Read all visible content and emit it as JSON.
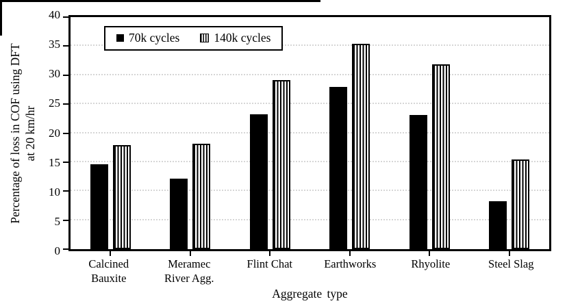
{
  "chart_data": {
    "type": "bar",
    "title": "",
    "categories": [
      "Calcined Bauxite",
      "Meramec River Agg.",
      "Flint Chat",
      "Earthworks",
      "Rhyolite",
      "Steel Slag"
    ],
    "series": [
      {
        "name": "70k cycles",
        "style": "solid",
        "values": [
          14.6,
          12.1,
          23.3,
          28.0,
          23.1,
          8.3
        ]
      },
      {
        "name": "140k cycles",
        "style": "striped",
        "values": [
          17.9,
          18.2,
          29.1,
          35.4,
          31.8,
          15.5
        ]
      }
    ],
    "xlabel": "Aggregate type",
    "ylabel_line1": "Percentage of loss in COF using DFT",
    "ylabel_line2": "at 20 km/hr",
    "ylim": [
      0,
      40
    ],
    "ytick_step": 5,
    "ytick_labels": [
      "0",
      "5",
      "10",
      "15",
      "20",
      "25",
      "30",
      "35",
      "40"
    ],
    "grid": "horizontal-dotted",
    "legend_position": "top-left-inside",
    "colors": {
      "bar_solid": "#000000",
      "bar_stripe": "#000000",
      "axis": "#000000",
      "gridline": "#d6d6d6",
      "background": "#ffffff"
    }
  }
}
